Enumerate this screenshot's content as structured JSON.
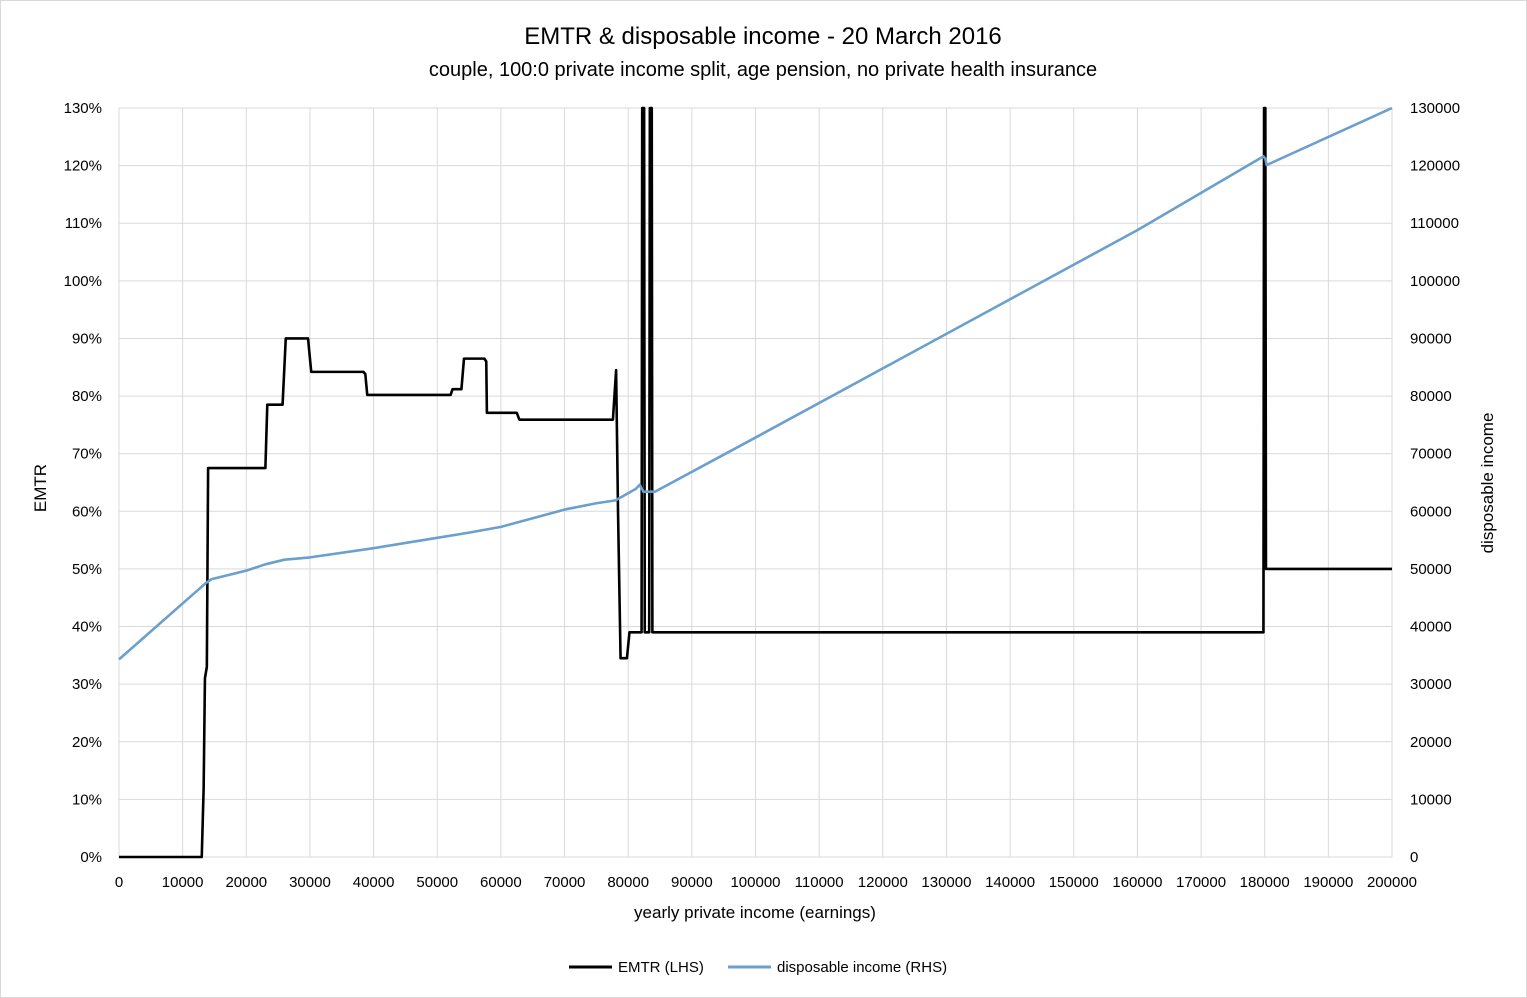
{
  "chart_data": {
    "type": "line",
    "title": "EMTR & disposable income - 20 March 2016",
    "subtitle": "couple, 100:0 private income split, age pension, no private health insurance",
    "xlabel": "yearly private income (earnings)",
    "ylabel_left": "EMTR",
    "ylabel_right": "disposable income",
    "xlim": [
      0,
      200000
    ],
    "ylim_left": [
      0,
      1.3
    ],
    "ylim_right": [
      0,
      130000
    ],
    "grid": true,
    "legend_position": "bottom",
    "x_ticks": [
      "0",
      "10000",
      "20000",
      "30000",
      "40000",
      "50000",
      "60000",
      "70000",
      "80000",
      "90000",
      "100000",
      "110000",
      "120000",
      "130000",
      "140000",
      "150000",
      "160000",
      "170000",
      "180000",
      "190000",
      "200000"
    ],
    "y_left_ticks": [
      "0%",
      "10%",
      "20%",
      "30%",
      "40%",
      "50%",
      "60%",
      "70%",
      "80%",
      "90%",
      "100%",
      "110%",
      "120%",
      "130%"
    ],
    "y_right_ticks": [
      "0",
      "10000",
      "20000",
      "30000",
      "40000",
      "50000",
      "60000",
      "70000",
      "80000",
      "90000",
      "100000",
      "110000",
      "120000",
      "130000"
    ],
    "series": [
      {
        "name": "EMTR (LHS)",
        "axis": "left",
        "color": "#000000",
        "points": [
          [
            0,
            0
          ],
          [
            13000,
            0
          ],
          [
            13300,
            0.12
          ],
          [
            13500,
            0.31
          ],
          [
            13800,
            0.33
          ],
          [
            14000,
            0.675
          ],
          [
            23000,
            0.675
          ],
          [
            23300,
            0.785
          ],
          [
            25700,
            0.785
          ],
          [
            26200,
            0.9
          ],
          [
            29700,
            0.9
          ],
          [
            30200,
            0.842
          ],
          [
            38400,
            0.842
          ],
          [
            38700,
            0.838
          ],
          [
            39000,
            0.802
          ],
          [
            52100,
            0.802
          ],
          [
            52400,
            0.812
          ],
          [
            53800,
            0.812
          ],
          [
            54200,
            0.865
          ],
          [
            57400,
            0.865
          ],
          [
            57700,
            0.86
          ],
          [
            57800,
            0.771
          ],
          [
            62500,
            0.771
          ],
          [
            62900,
            0.759
          ],
          [
            77600,
            0.759
          ],
          [
            78100,
            0.845
          ],
          [
            78400,
            0.6
          ],
          [
            78800,
            0.345
          ],
          [
            79800,
            0.345
          ],
          [
            80200,
            0.39
          ],
          [
            82100,
            0.39
          ],
          [
            82200,
            1.3
          ],
          [
            82500,
            1.3
          ],
          [
            82600,
            0.39
          ],
          [
            83300,
            0.39
          ],
          [
            83400,
            1.3
          ],
          [
            83700,
            1.3
          ],
          [
            83800,
            0.39
          ],
          [
            179800,
            0.39
          ],
          [
            179900,
            1.3
          ],
          [
            180100,
            1.3
          ],
          [
            180200,
            0.5
          ],
          [
            200000,
            0.5
          ]
        ]
      },
      {
        "name": "disposable income (RHS)",
        "axis": "right",
        "color": "#6b9fcd",
        "points": [
          [
            0,
            34300
          ],
          [
            13600,
            47500
          ],
          [
            14500,
            48200
          ],
          [
            20000,
            49700
          ],
          [
            23000,
            50800
          ],
          [
            26000,
            51600
          ],
          [
            30000,
            52000
          ],
          [
            40000,
            53600
          ],
          [
            50000,
            55400
          ],
          [
            55000,
            56300
          ],
          [
            60000,
            57300
          ],
          [
            65000,
            58800
          ],
          [
            70000,
            60300
          ],
          [
            75000,
            61400
          ],
          [
            78000,
            61900
          ],
          [
            81200,
            63900
          ],
          [
            81800,
            64600
          ],
          [
            82400,
            63400
          ],
          [
            84200,
            63400
          ],
          [
            100000,
            72800
          ],
          [
            120000,
            84800
          ],
          [
            140000,
            96800
          ],
          [
            160000,
            108800
          ],
          [
            179800,
            121600
          ],
          [
            180100,
            121200
          ],
          [
            180300,
            120100
          ],
          [
            200000,
            130000
          ]
        ]
      }
    ]
  }
}
